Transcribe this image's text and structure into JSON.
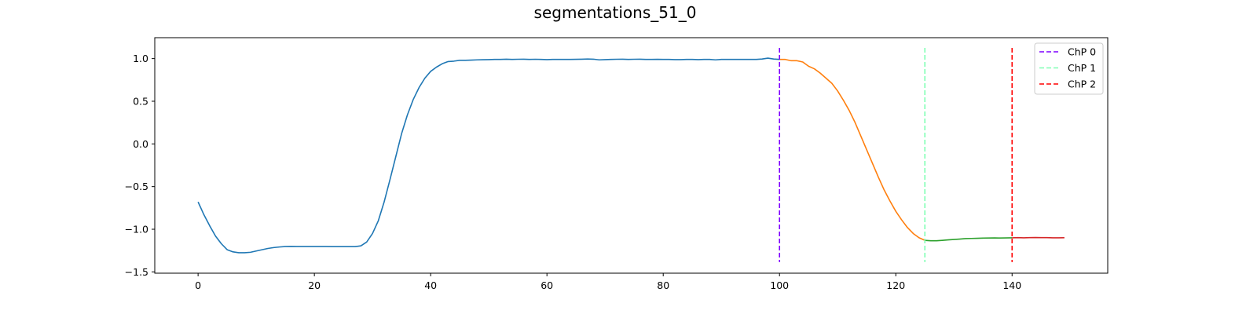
{
  "chart_data": {
    "type": "line",
    "title": "segmentations_51_0",
    "xlabel": "",
    "ylabel": "",
    "xlim": [
      -7.45,
      156.45
    ],
    "ylim": [
      -1.515,
      1.245
    ],
    "x_ticks": [
      0,
      20,
      40,
      60,
      80,
      100,
      120,
      140
    ],
    "y_ticks": [
      -1.5,
      -1.0,
      -0.5,
      0.0,
      0.5,
      1.0
    ],
    "y_tick_labels": [
      "−1.5",
      "−1.0",
      "−0.5",
      "0.0",
      "0.5",
      "1.0"
    ],
    "grid": false,
    "legend_position": "top-right",
    "series": [
      {
        "color": "#1f77b4",
        "x_start": 0,
        "values": [
          -0.68,
          -0.83,
          -0.96,
          -1.08,
          -1.17,
          -1.24,
          -1.265,
          -1.275,
          -1.275,
          -1.27,
          -1.255,
          -1.24,
          -1.225,
          -1.215,
          -1.208,
          -1.203,
          -1.202,
          -1.203,
          -1.203,
          -1.203,
          -1.203,
          -1.203,
          -1.203,
          -1.204,
          -1.204,
          -1.204,
          -1.204,
          -1.204,
          -1.195,
          -1.15,
          -1.05,
          -0.9,
          -0.68,
          -0.42,
          -0.15,
          0.12,
          0.34,
          0.52,
          0.66,
          0.77,
          0.85,
          0.9,
          0.94,
          0.965,
          0.97,
          0.98,
          0.98,
          0.982,
          0.985,
          0.987,
          0.988,
          0.99,
          0.99,
          0.993,
          0.99,
          0.992,
          0.993,
          0.99,
          0.992,
          0.99,
          0.988,
          0.99,
          0.99,
          0.99,
          0.99,
          0.991,
          0.993,
          0.995,
          0.993,
          0.985,
          0.988,
          0.99,
          0.992,
          0.993,
          0.99,
          0.992,
          0.993,
          0.99,
          0.99,
          0.991,
          0.99,
          0.99,
          0.988,
          0.988,
          0.99,
          0.99,
          0.988,
          0.99,
          0.99,
          0.985,
          0.99,
          0.99,
          0.99,
          0.99,
          0.99,
          0.99,
          0.99,
          0.995,
          1.005,
          0.995,
          0.99
        ]
      },
      {
        "color": "#ff7f0e",
        "x_start": 100,
        "values": [
          0.99,
          0.99,
          0.975,
          0.975,
          0.96,
          0.91,
          0.88,
          0.83,
          0.77,
          0.71,
          0.62,
          0.51,
          0.39,
          0.25,
          0.09,
          -0.07,
          -0.23,
          -0.39,
          -0.54,
          -0.67,
          -0.79,
          -0.89,
          -0.98,
          -1.05,
          -1.1,
          -1.13
        ]
      },
      {
        "color": "#2ca02c",
        "x_start": 125,
        "values": [
          -1.13,
          -1.135,
          -1.135,
          -1.13,
          -1.125,
          -1.12,
          -1.115,
          -1.11,
          -1.108,
          -1.106,
          -1.104,
          -1.103,
          -1.102,
          -1.103,
          -1.102,
          -1.1
        ]
      },
      {
        "color": "#d62728",
        "x_start": 140,
        "values": [
          -1.1,
          -1.098,
          -1.1,
          -1.098,
          -1.097,
          -1.098,
          -1.098,
          -1.1,
          -1.1,
          -1.099
        ]
      }
    ],
    "changepoints": [
      {
        "name": "ChP 0",
        "x": 100,
        "color": "#7f00ff"
      },
      {
        "name": "ChP 1",
        "x": 125,
        "color": "#80ffb4"
      },
      {
        "name": "ChP 2",
        "x": 140,
        "color": "#ff0000"
      }
    ]
  }
}
